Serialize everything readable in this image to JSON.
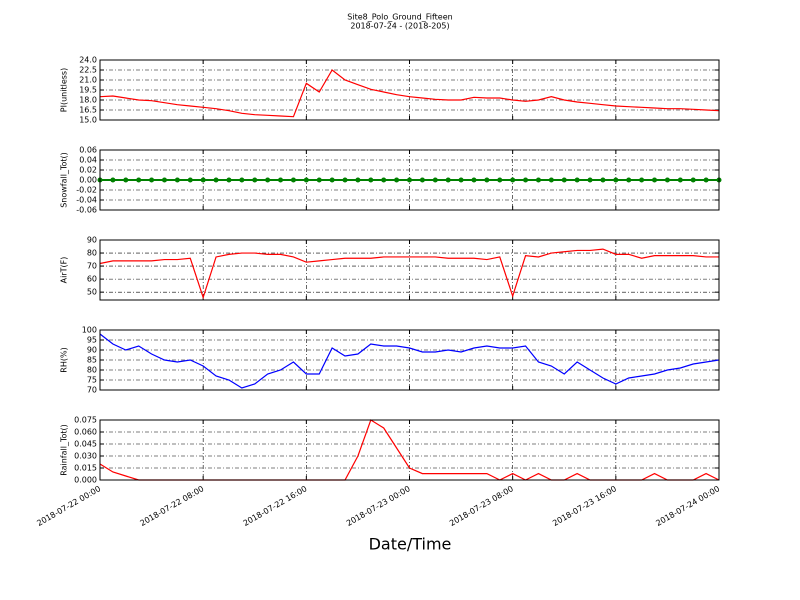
{
  "chart_data": [
    {
      "type": "line",
      "title": "Site8_Polo_Ground_Fifteen",
      "subtitle": "2018-07-24 - (2018-205)",
      "y_label": "PI(unitless)",
      "x": [
        "2018-07-22 00:00",
        "2018-07-22 01:00",
        "2018-07-22 02:00",
        "2018-07-22 03:00",
        "2018-07-22 04:00",
        "2018-07-22 05:00",
        "2018-07-22 06:00",
        "2018-07-22 07:00",
        "2018-07-22 08:00",
        "2018-07-22 09:00",
        "2018-07-22 10:00",
        "2018-07-22 11:00",
        "2018-07-22 12:00",
        "2018-07-22 13:00",
        "2018-07-22 14:00",
        "2018-07-22 15:00",
        "2018-07-22 16:00",
        "2018-07-22 17:00",
        "2018-07-22 18:00",
        "2018-07-22 19:00",
        "2018-07-22 20:00",
        "2018-07-22 21:00",
        "2018-07-22 22:00",
        "2018-07-22 23:00",
        "2018-07-23 00:00",
        "2018-07-23 01:00",
        "2018-07-23 02:00",
        "2018-07-23 03:00",
        "2018-07-23 04:00",
        "2018-07-23 05:00",
        "2018-07-23 06:00",
        "2018-07-23 07:00",
        "2018-07-23 08:00",
        "2018-07-23 09:00",
        "2018-07-23 10:00",
        "2018-07-23 11:00",
        "2018-07-23 12:00",
        "2018-07-23 13:00",
        "2018-07-23 14:00",
        "2018-07-23 15:00",
        "2018-07-23 16:00",
        "2018-07-23 17:00",
        "2018-07-23 18:00",
        "2018-07-23 19:00",
        "2018-07-23 20:00",
        "2018-07-23 21:00",
        "2018-07-23 22:00",
        "2018-07-23 23:00",
        "2018-07-24 00:00"
      ],
      "series": [
        {
          "color": "#ff0000",
          "values": [
            18.5,
            18.6,
            18.3,
            18.0,
            17.9,
            17.6,
            17.3,
            17.1,
            16.9,
            16.7,
            16.4,
            16.0,
            15.8,
            15.7,
            15.6,
            15.5,
            20.5,
            19.2,
            22.5,
            21.0,
            20.3,
            19.6,
            19.2,
            18.8,
            18.5,
            18.3,
            18.1,
            18.0,
            18.0,
            18.4,
            18.3,
            18.3,
            18.0,
            17.8,
            18.0,
            18.5,
            18.0,
            17.7,
            17.5,
            17.3,
            17.1,
            17.0,
            16.9,
            16.8,
            16.7,
            16.7,
            16.6,
            16.5,
            16.4
          ]
        }
      ],
      "xlim": [
        "2018-07-22 00:00",
        "2018-07-24 00:00"
      ],
      "xticks": [
        "2018-07-22 00:00",
        "2018-07-22 08:00",
        "2018-07-22 16:00",
        "2018-07-23 00:00",
        "2018-07-23 08:00",
        "2018-07-23 16:00",
        "2018-07-24 00:00"
      ],
      "ylim": [
        15,
        24
      ],
      "yticks": [
        {
          "value": 15,
          "label": "15.0"
        },
        16.5,
        {
          "value": 18,
          "label": "18.0"
        },
        19.5,
        {
          "value": 21,
          "label": "21.0"
        },
        22.5,
        {
          "value": 24,
          "label": "24.0"
        }
      ],
      "grid": true
    },
    {
      "type": "line",
      "y_label": "Snowfall_Tot()",
      "markers": true,
      "x": [
        "2018-07-22 00:00",
        "2018-07-22 01:00",
        "2018-07-22 02:00",
        "2018-07-22 03:00",
        "2018-07-22 04:00",
        "2018-07-22 05:00",
        "2018-07-22 06:00",
        "2018-07-22 07:00",
        "2018-07-22 08:00",
        "2018-07-22 09:00",
        "2018-07-22 10:00",
        "2018-07-22 11:00",
        "2018-07-22 12:00",
        "2018-07-22 13:00",
        "2018-07-22 14:00",
        "2018-07-22 15:00",
        "2018-07-22 16:00",
        "2018-07-22 17:00",
        "2018-07-22 18:00",
        "2018-07-22 19:00",
        "2018-07-22 20:00",
        "2018-07-22 21:00",
        "2018-07-22 22:00",
        "2018-07-22 23:00",
        "2018-07-23 00:00",
        "2018-07-23 01:00",
        "2018-07-23 02:00",
        "2018-07-23 03:00",
        "2018-07-23 04:00",
        "2018-07-23 05:00",
        "2018-07-23 06:00",
        "2018-07-23 07:00",
        "2018-07-23 08:00",
        "2018-07-23 09:00",
        "2018-07-23 10:00",
        "2018-07-23 11:00",
        "2018-07-23 12:00",
        "2018-07-23 13:00",
        "2018-07-23 14:00",
        "2018-07-23 15:00",
        "2018-07-23 16:00",
        "2018-07-23 17:00",
        "2018-07-23 18:00",
        "2018-07-23 19:00",
        "2018-07-23 20:00",
        "2018-07-23 21:00",
        "2018-07-23 22:00",
        "2018-07-23 23:00",
        "2018-07-24 00:00"
      ],
      "series": [
        {
          "color": "#008000",
          "values": [
            0,
            0,
            0,
            0,
            0,
            0,
            0,
            0,
            0,
            0,
            0,
            0,
            0,
            0,
            0,
            0,
            0,
            0,
            0,
            0,
            0,
            0,
            0,
            0,
            0,
            0,
            0,
            0,
            0,
            0,
            0,
            0,
            0,
            0,
            0,
            0,
            0,
            0,
            0,
            0,
            0,
            0,
            0,
            0,
            0,
            0,
            0,
            0,
            0
          ]
        }
      ],
      "xlim": [
        "2018-07-22 00:00",
        "2018-07-24 00:00"
      ],
      "xticks": [
        "2018-07-22 00:00",
        "2018-07-22 08:00",
        "2018-07-22 16:00",
        "2018-07-23 00:00",
        "2018-07-23 08:00",
        "2018-07-23 16:00",
        "2018-07-24 00:00"
      ],
      "ylim": [
        -0.06,
        0.06
      ],
      "yticks": [
        -0.06,
        -0.04,
        -0.02,
        {
          "value": 0,
          "label": "0.00"
        },
        0.02,
        0.04,
        0.06
      ],
      "grid": true
    },
    {
      "type": "line",
      "y_label": "AirT(F)",
      "x": [
        "2018-07-22 00:00",
        "2018-07-22 01:00",
        "2018-07-22 02:00",
        "2018-07-22 03:00",
        "2018-07-22 04:00",
        "2018-07-22 05:00",
        "2018-07-22 06:00",
        "2018-07-22 07:00",
        "2018-07-22 08:00",
        "2018-07-22 09:00",
        "2018-07-22 10:00",
        "2018-07-22 11:00",
        "2018-07-22 12:00",
        "2018-07-22 13:00",
        "2018-07-22 14:00",
        "2018-07-22 15:00",
        "2018-07-22 16:00",
        "2018-07-22 17:00",
        "2018-07-22 18:00",
        "2018-07-22 19:00",
        "2018-07-22 20:00",
        "2018-07-22 21:00",
        "2018-07-22 22:00",
        "2018-07-22 23:00",
        "2018-07-23 00:00",
        "2018-07-23 01:00",
        "2018-07-23 02:00",
        "2018-07-23 03:00",
        "2018-07-23 04:00",
        "2018-07-23 05:00",
        "2018-07-23 06:00",
        "2018-07-23 07:00",
        "2018-07-23 08:00",
        "2018-07-23 09:00",
        "2018-07-23 10:00",
        "2018-07-23 11:00",
        "2018-07-23 12:00",
        "2018-07-23 13:00",
        "2018-07-23 14:00",
        "2018-07-23 15:00",
        "2018-07-23 16:00",
        "2018-07-23 17:00",
        "2018-07-23 18:00",
        "2018-07-23 19:00",
        "2018-07-23 20:00",
        "2018-07-23 21:00",
        "2018-07-23 22:00",
        "2018-07-23 23:00",
        "2018-07-24 00:00"
      ],
      "series": [
        {
          "color": "#ff0000",
          "values": [
            72,
            74,
            74,
            74,
            74,
            75,
            75,
            76,
            46,
            77,
            79,
            80,
            80,
            79,
            79,
            77,
            73,
            74,
            75,
            76,
            76,
            76,
            77,
            77,
            77,
            77,
            77,
            76,
            76,
            76,
            75,
            77,
            47,
            78,
            77,
            80,
            81,
            82,
            82,
            83,
            79,
            79,
            76,
            78,
            78,
            78,
            78,
            77,
            77
          ]
        }
      ],
      "xlim": [
        "2018-07-22 00:00",
        "2018-07-24 00:00"
      ],
      "xticks": [
        "2018-07-22 00:00",
        "2018-07-22 08:00",
        "2018-07-22 16:00",
        "2018-07-23 00:00",
        "2018-07-23 08:00",
        "2018-07-23 16:00",
        "2018-07-24 00:00"
      ],
      "ylim": [
        44,
        90
      ],
      "yticks": [
        50,
        60,
        70,
        80,
        90
      ],
      "grid": true
    },
    {
      "type": "line",
      "y_label": "RH(%)",
      "x": [
        "2018-07-22 00:00",
        "2018-07-22 01:00",
        "2018-07-22 02:00",
        "2018-07-22 03:00",
        "2018-07-22 04:00",
        "2018-07-22 05:00",
        "2018-07-22 06:00",
        "2018-07-22 07:00",
        "2018-07-22 08:00",
        "2018-07-22 09:00",
        "2018-07-22 10:00",
        "2018-07-22 11:00",
        "2018-07-22 12:00",
        "2018-07-22 13:00",
        "2018-07-22 14:00",
        "2018-07-22 15:00",
        "2018-07-22 16:00",
        "2018-07-22 17:00",
        "2018-07-22 18:00",
        "2018-07-22 19:00",
        "2018-07-22 20:00",
        "2018-07-22 21:00",
        "2018-07-22 22:00",
        "2018-07-22 23:00",
        "2018-07-23 00:00",
        "2018-07-23 01:00",
        "2018-07-23 02:00",
        "2018-07-23 03:00",
        "2018-07-23 04:00",
        "2018-07-23 05:00",
        "2018-07-23 06:00",
        "2018-07-23 07:00",
        "2018-07-23 08:00",
        "2018-07-23 09:00",
        "2018-07-23 10:00",
        "2018-07-23 11:00",
        "2018-07-23 12:00",
        "2018-07-23 13:00",
        "2018-07-23 14:00",
        "2018-07-23 15:00",
        "2018-07-23 16:00",
        "2018-07-23 17:00",
        "2018-07-23 18:00",
        "2018-07-23 19:00",
        "2018-07-23 20:00",
        "2018-07-23 21:00",
        "2018-07-23 22:00",
        "2018-07-23 23:00",
        "2018-07-24 00:00"
      ],
      "series": [
        {
          "color": "#0000ff",
          "values": [
            98,
            93,
            90,
            92,
            88,
            85,
            84,
            85,
            82,
            77,
            75,
            71,
            73,
            78,
            80,
            84,
            78,
            78,
            91,
            87,
            88,
            93,
            92,
            92,
            91,
            89,
            89,
            90,
            89,
            91,
            92,
            91,
            91,
            92,
            84,
            82,
            78,
            84,
            80,
            76,
            73,
            76,
            77,
            78,
            80,
            81,
            83,
            84,
            85
          ]
        }
      ],
      "xlim": [
        "2018-07-22 00:00",
        "2018-07-24 00:00"
      ],
      "xticks": [
        "2018-07-22 00:00",
        "2018-07-22 08:00",
        "2018-07-22 16:00",
        "2018-07-23 00:00",
        "2018-07-23 08:00",
        "2018-07-23 16:00",
        "2018-07-24 00:00"
      ],
      "ylim": [
        70,
        100
      ],
      "yticks": [
        70,
        75,
        80,
        85,
        90,
        95,
        100
      ],
      "grid": true
    },
    {
      "type": "line",
      "y_label": "Rainfall_Tot()",
      "x_label": "Date/Time",
      "x": [
        "2018-07-22 00:00",
        "2018-07-22 01:00",
        "2018-07-22 02:00",
        "2018-07-22 03:00",
        "2018-07-22 04:00",
        "2018-07-22 05:00",
        "2018-07-22 06:00",
        "2018-07-22 07:00",
        "2018-07-22 08:00",
        "2018-07-22 09:00",
        "2018-07-22 10:00",
        "2018-07-22 11:00",
        "2018-07-22 12:00",
        "2018-07-22 13:00",
        "2018-07-22 14:00",
        "2018-07-22 15:00",
        "2018-07-22 16:00",
        "2018-07-22 17:00",
        "2018-07-22 18:00",
        "2018-07-22 19:00",
        "2018-07-22 20:00",
        "2018-07-22 21:00",
        "2018-07-22 22:00",
        "2018-07-22 23:00",
        "2018-07-23 00:00",
        "2018-07-23 01:00",
        "2018-07-23 02:00",
        "2018-07-23 03:00",
        "2018-07-23 04:00",
        "2018-07-23 05:00",
        "2018-07-23 06:00",
        "2018-07-23 07:00",
        "2018-07-23 08:00",
        "2018-07-23 09:00",
        "2018-07-23 10:00",
        "2018-07-23 11:00",
        "2018-07-23 12:00",
        "2018-07-23 13:00",
        "2018-07-23 14:00",
        "2018-07-23 15:00",
        "2018-07-23 16:00",
        "2018-07-23 17:00",
        "2018-07-23 18:00",
        "2018-07-23 19:00",
        "2018-07-23 20:00",
        "2018-07-23 21:00",
        "2018-07-23 22:00",
        "2018-07-23 23:00",
        "2018-07-24 00:00"
      ],
      "series": [
        {
          "color": "#ff0000",
          "values": [
            0.02,
            0.01,
            0.005,
            0,
            0,
            0,
            0,
            0,
            0,
            0,
            0,
            0,
            0,
            0,
            0,
            0,
            0,
            0,
            0,
            0,
            0.03,
            0.075,
            0.065,
            0.04,
            0.015,
            0.008,
            0.008,
            0.008,
            0.008,
            0.008,
            0.008,
            0,
            0.008,
            0,
            0.008,
            0,
            0,
            0.008,
            0,
            0,
            0,
            0,
            0,
            0.008,
            0,
            0,
            0,
            0.008,
            0
          ]
        }
      ],
      "xlim": [
        "2018-07-22 00:00",
        "2018-07-24 00:00"
      ],
      "xticks": [
        {
          "value": "2018-07-22 00:00",
          "label": "2018-07-22 00:00"
        },
        {
          "value": "2018-07-22 08:00",
          "label": "2018-07-22 08:00"
        },
        {
          "value": "2018-07-22 16:00",
          "label": "2018-07-22 16:00"
        },
        {
          "value": "2018-07-23 00:00",
          "label": "2018-07-23 00:00"
        },
        {
          "value": "2018-07-23 08:00",
          "label": "2018-07-23 08:00"
        },
        {
          "value": "2018-07-23 16:00",
          "label": "2018-07-23 16:00"
        },
        {
          "value": "2018-07-24 00:00",
          "label": "2018-07-24 00:00"
        }
      ],
      "ylim": [
        0,
        0.075
      ],
      "yticks": [
        {
          "value": 0,
          "label": "0.000"
        },
        0.015,
        {
          "value": 0.03,
          "label": "0.030"
        },
        0.045,
        {
          "value": 0.06,
          "label": "0.060"
        },
        0.075
      ],
      "grid": true
    }
  ]
}
